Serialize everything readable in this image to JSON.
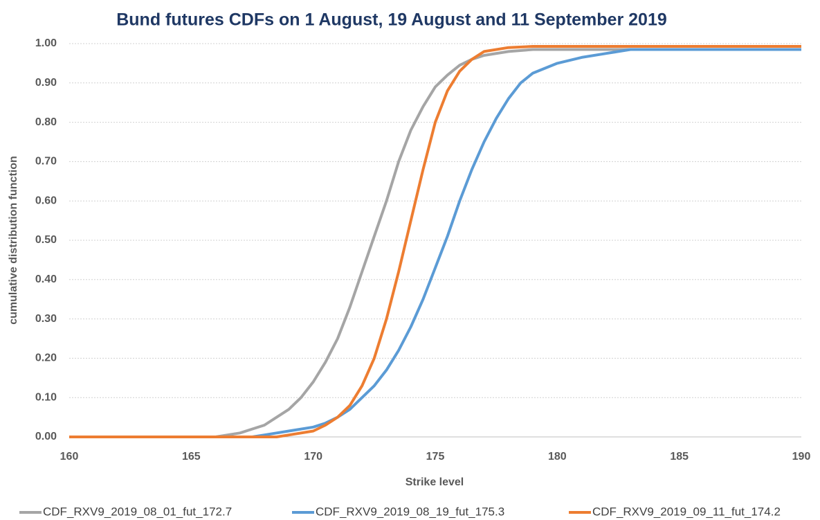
{
  "chart_data": {
    "type": "line",
    "title": "Bund futures CDFs on 1 August, 19 August and 11 September 2019",
    "x_label": "Strike level",
    "y_label": "cumulative distribution function",
    "xlim": [
      160,
      190
    ],
    "xticks": [
      160,
      165,
      170,
      175,
      180,
      185,
      190
    ],
    "ylim": [
      0,
      1
    ],
    "yticks": [
      {
        "value": 0,
        "label": "0.00"
      },
      {
        "value": 0.1,
        "label": "0.10"
      },
      {
        "value": 0.2,
        "label": "0.20"
      },
      {
        "value": 0.3,
        "label": "0.30"
      },
      {
        "value": 0.4,
        "label": "0.40"
      },
      {
        "value": 0.5,
        "label": "0.50"
      },
      {
        "value": 0.6,
        "label": "0.60"
      },
      {
        "value": 0.7,
        "label": "0.70"
      },
      {
        "value": 0.8,
        "label": "0.80"
      },
      {
        "value": 0.9,
        "label": "0.90"
      },
      {
        "value": 1,
        "label": "1.00"
      }
    ],
    "grid": true,
    "legend": "bottom",
    "series": [
      {
        "name": "CDF_RXV9_2019_08_01_fut_172.7",
        "color": "#a5a5a5",
        "x": [
          160,
          166,
          167,
          167.5,
          168,
          168.5,
          169,
          169.5,
          170,
          170.5,
          171,
          171.5,
          172,
          172.5,
          173,
          173.5,
          174,
          174.5,
          175,
          175.5,
          176,
          176.5,
          177,
          178,
          179,
          190
        ],
        "values": [
          0,
          0,
          0.01,
          0.02,
          0.03,
          0.05,
          0.07,
          0.1,
          0.14,
          0.19,
          0.25,
          0.33,
          0.42,
          0.51,
          0.6,
          0.7,
          0.78,
          0.84,
          0.89,
          0.92,
          0.945,
          0.96,
          0.97,
          0.98,
          0.985,
          0.985
        ]
      },
      {
        "name": "CDF_RXV9_2019_08_19_fut_175.3",
        "color": "#5b9bd5",
        "x": [
          160,
          167.5,
          168,
          169,
          170,
          170.5,
          171,
          171.5,
          172,
          172.5,
          173,
          173.5,
          174,
          174.5,
          175,
          175.5,
          176,
          176.5,
          177,
          177.5,
          178,
          178.5,
          179,
          180,
          181,
          182,
          183,
          190
        ],
        "values": [
          0,
          0,
          0.005,
          0.015,
          0.025,
          0.035,
          0.05,
          0.07,
          0.1,
          0.13,
          0.17,
          0.22,
          0.28,
          0.35,
          0.43,
          0.51,
          0.6,
          0.68,
          0.75,
          0.81,
          0.86,
          0.9,
          0.925,
          0.95,
          0.965,
          0.975,
          0.985,
          0.985
        ]
      },
      {
        "name": "CDF_RXV9_2019_09_11_fut_174.2",
        "color": "#ed7d31",
        "x": [
          160,
          168.5,
          169,
          170,
          170.5,
          171,
          171.5,
          172,
          172.5,
          173,
          173.5,
          174,
          174.5,
          175,
          175.5,
          176,
          176.5,
          177,
          178,
          179,
          190
        ],
        "values": [
          0,
          0,
          0.005,
          0.015,
          0.03,
          0.05,
          0.08,
          0.13,
          0.2,
          0.3,
          0.42,
          0.55,
          0.68,
          0.8,
          0.88,
          0.93,
          0.96,
          0.98,
          0.99,
          0.993,
          0.993
        ]
      }
    ]
  }
}
